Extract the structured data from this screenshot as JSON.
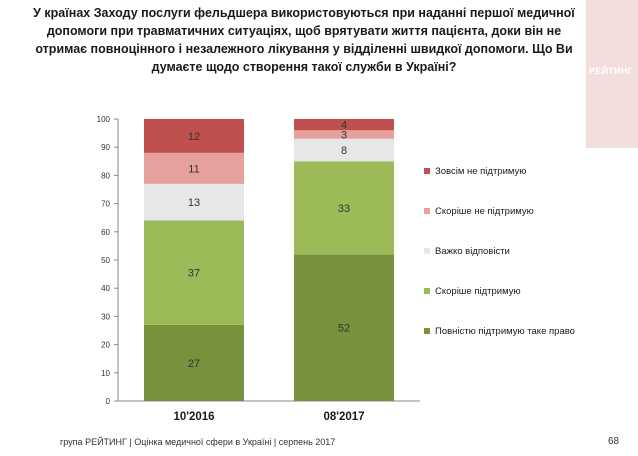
{
  "header": {
    "title": "У країнах Заходу послуги фельдшера використовуються при наданні першої медичної допомоги при травматичних ситуаціях, щоб врятувати життя пацієнта, доки він не отримає повноцінного і незалежного лікування у відділенні швидкої допомоги. Що Ви думаєте щодо створення такої служби в Україні?",
    "logo_text": "РЕЙТИНГ"
  },
  "chart_data": {
    "type": "bar",
    "stacked": true,
    "categories": [
      "10'2016",
      "08'2017"
    ],
    "series": [
      {
        "name": "Повністю підтримую таке право",
        "values": [
          27,
          52
        ],
        "color": "#76923c"
      },
      {
        "name": "Скоріше підтримую",
        "values": [
          37,
          33
        ],
        "color": "#9bbb59"
      },
      {
        "name": "Важко відповісти",
        "values": [
          13,
          8
        ],
        "color": "#e7e7e7"
      },
      {
        "name": "Скоріше не підтримую",
        "values": [
          11,
          3
        ],
        "color": "#e6a09e"
      },
      {
        "name": "Зовсім не підтримую",
        "values": [
          12,
          4
        ],
        "color": "#c0504d"
      }
    ],
    "yticks": [
      0,
      10,
      20,
      30,
      40,
      50,
      60,
      70,
      80,
      90,
      100
    ],
    "ylim": [
      0,
      100
    ],
    "legend_position": "right",
    "grid": false
  },
  "footer": {
    "source": "група РЕЙТИНГ  |  Оцінка медичної сфери в Україні  |  серпень 2017",
    "page_number": "68"
  }
}
